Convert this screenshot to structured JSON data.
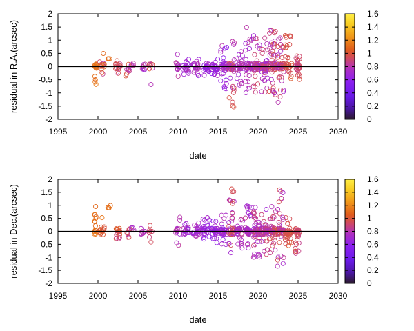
{
  "chart_data": [
    {
      "type": "scatter",
      "xlabel": "date",
      "ylabel": "residual in R.A.(arcsec)",
      "xlim": [
        1995,
        2030
      ],
      "ylim": [
        -2,
        2
      ],
      "xticks": [
        "1995",
        "2000",
        "2005",
        "2010",
        "2015",
        "2020",
        "2025",
        "2030"
      ],
      "yticks": [
        "-2",
        "-1.5",
        "-1",
        "-0.5",
        "0",
        "0.5",
        "1",
        "1.5",
        "2"
      ],
      "zero_line": true,
      "marker": "open-circle",
      "colorbar": {
        "range": [
          0,
          1.6
        ],
        "ticks": [
          "0",
          "0.2",
          "0.4",
          "0.6",
          "0.8",
          "1",
          "1.2",
          "1.4",
          "1.6"
        ],
        "palette": [
          "#2a1a2a",
          "#5a18c8",
          "#8a1cf0",
          "#b030c0",
          "#d04a60",
          "#e0601c",
          "#f0961a",
          "#f8cc22",
          "#ffee44"
        ]
      },
      "clusters": [
        {
          "x": 1999.7,
          "spread": 0.15,
          "n": 18,
          "y": [
            -1.1,
            0.3
          ],
          "c": [
            1.0,
            1.1
          ]
        },
        {
          "x": 2000.5,
          "spread": 0.3,
          "n": 14,
          "y": [
            -0.4,
            0.5
          ],
          "c": [
            0.6,
            1.1
          ]
        },
        {
          "x": 2001.4,
          "spread": 0.2,
          "n": 4,
          "y": [
            0.3,
            0.5
          ],
          "c": [
            1.0,
            1.1
          ]
        },
        {
          "x": 2002.5,
          "spread": 0.3,
          "n": 16,
          "y": [
            -0.3,
            0.25
          ],
          "c": [
            0.6,
            0.9
          ]
        },
        {
          "x": 2003.7,
          "spread": 0.3,
          "n": 8,
          "y": [
            -0.5,
            0.15
          ],
          "c": [
            0.5,
            1.0
          ]
        },
        {
          "x": 2004.3,
          "spread": 0.2,
          "n": 4,
          "y": [
            0.05,
            0.25
          ],
          "c": [
            0.5,
            0.7
          ]
        },
        {
          "x": 2005.6,
          "spread": 0.3,
          "n": 8,
          "y": [
            -0.35,
            0.2
          ],
          "c": [
            0.5,
            0.7
          ]
        },
        {
          "x": 2006.7,
          "spread": 0.3,
          "n": 8,
          "y": [
            -0.9,
            0.1
          ],
          "c": [
            0.6,
            0.95
          ]
        },
        {
          "x": 2010.0,
          "spread": 0.3,
          "n": 14,
          "y": [
            -0.4,
            0.65
          ],
          "c": [
            0.5,
            0.7
          ]
        },
        {
          "x": 2011.0,
          "spread": 0.4,
          "n": 18,
          "y": [
            -0.3,
            0.3
          ],
          "c": [
            0.45,
            0.65
          ]
        },
        {
          "x": 2012.2,
          "spread": 0.4,
          "n": 22,
          "y": [
            -0.35,
            0.35
          ],
          "c": [
            0.45,
            0.65
          ]
        },
        {
          "x": 2013.5,
          "spread": 0.4,
          "n": 26,
          "y": [
            -0.35,
            0.4
          ],
          "c": [
            0.4,
            0.6
          ]
        },
        {
          "x": 2014.6,
          "spread": 0.4,
          "n": 30,
          "y": [
            -0.6,
            0.45
          ],
          "c": [
            0.4,
            0.6
          ]
        },
        {
          "x": 2015.7,
          "spread": 0.4,
          "n": 38,
          "y": [
            -0.9,
            0.8
          ],
          "c": [
            0.4,
            0.65
          ]
        },
        {
          "x": 2016.7,
          "spread": 0.35,
          "n": 44,
          "y": [
            -1.55,
            1.05
          ],
          "c": [
            0.5,
            0.9
          ]
        },
        {
          "x": 2017.7,
          "spread": 0.4,
          "n": 32,
          "y": [
            -0.7,
            0.6
          ],
          "c": [
            0.5,
            0.7
          ]
        },
        {
          "x": 2018.8,
          "spread": 0.4,
          "n": 46,
          "y": [
            -1.0,
            1.5
          ],
          "c": [
            0.5,
            0.7
          ]
        },
        {
          "x": 2019.8,
          "spread": 0.4,
          "n": 52,
          "y": [
            -1.05,
            1.2
          ],
          "c": [
            0.5,
            0.8
          ]
        },
        {
          "x": 2020.8,
          "spread": 0.4,
          "n": 52,
          "y": [
            -1.0,
            1.1
          ],
          "c": [
            0.5,
            0.8
          ]
        },
        {
          "x": 2021.8,
          "spread": 0.4,
          "n": 56,
          "y": [
            -1.1,
            1.45
          ],
          "c": [
            0.55,
            0.9
          ]
        },
        {
          "x": 2022.8,
          "spread": 0.4,
          "n": 50,
          "y": [
            -1.6,
            1.15
          ],
          "c": [
            0.55,
            0.9
          ]
        },
        {
          "x": 2023.8,
          "spread": 0.4,
          "n": 34,
          "y": [
            -0.5,
            1.25
          ],
          "c": [
            0.8,
            0.95
          ]
        },
        {
          "x": 2024.9,
          "spread": 0.3,
          "n": 30,
          "y": [
            -0.6,
            0.45
          ],
          "c": [
            0.7,
            0.9
          ]
        }
      ]
    },
    {
      "type": "scatter",
      "xlabel": "date",
      "ylabel": "residual in Dec.(arcsec)",
      "xlim": [
        1995,
        2030
      ],
      "ylim": [
        -2,
        2
      ],
      "xticks": [
        "1995",
        "2000",
        "2005",
        "2010",
        "2015",
        "2020",
        "2025",
        "2030"
      ],
      "yticks": [
        "-2",
        "-1.5",
        "-1",
        "-0.5",
        "0",
        "0.5",
        "1",
        "1.5",
        "2"
      ],
      "zero_line": true,
      "marker": "open-circle",
      "colorbar": {
        "range": [
          0,
          1.6
        ],
        "ticks": [
          "0",
          "0.2",
          "0.4",
          "0.6",
          "0.8",
          "1",
          "1.2",
          "1.4",
          "1.6"
        ],
        "palette": [
          "#2a1a2a",
          "#5a18c8",
          "#8a1cf0",
          "#b030c0",
          "#d04a60",
          "#e0601c",
          "#f0961a",
          "#f8cc22",
          "#ffee44"
        ]
      },
      "clusters": [
        {
          "x": 1999.7,
          "spread": 0.15,
          "n": 18,
          "y": [
            -0.25,
            1.3
          ],
          "c": [
            1.0,
            1.1
          ]
        },
        {
          "x": 2000.5,
          "spread": 0.3,
          "n": 14,
          "y": [
            -0.2,
            0.6
          ],
          "c": [
            0.8,
            1.1
          ]
        },
        {
          "x": 2001.4,
          "spread": 0.2,
          "n": 4,
          "y": [
            0.9,
            1.05
          ],
          "c": [
            1.0,
            1.1
          ]
        },
        {
          "x": 2002.5,
          "spread": 0.3,
          "n": 16,
          "y": [
            -0.3,
            0.4
          ],
          "c": [
            0.7,
            1.0
          ]
        },
        {
          "x": 2003.7,
          "spread": 0.3,
          "n": 8,
          "y": [
            -0.3,
            0.1
          ],
          "c": [
            0.6,
            0.9
          ]
        },
        {
          "x": 2004.3,
          "spread": 0.2,
          "n": 4,
          "y": [
            0.05,
            0.15
          ],
          "c": [
            0.5,
            0.7
          ]
        },
        {
          "x": 2005.6,
          "spread": 0.3,
          "n": 8,
          "y": [
            -0.15,
            0.25
          ],
          "c": [
            0.5,
            0.7
          ]
        },
        {
          "x": 2006.7,
          "spread": 0.3,
          "n": 8,
          "y": [
            -0.45,
            0.25
          ],
          "c": [
            0.6,
            0.95
          ]
        },
        {
          "x": 2010.0,
          "spread": 0.3,
          "n": 14,
          "y": [
            -0.8,
            0.75
          ],
          "c": [
            0.5,
            0.7
          ]
        },
        {
          "x": 2011.0,
          "spread": 0.4,
          "n": 18,
          "y": [
            -0.3,
            0.3
          ],
          "c": [
            0.45,
            0.65
          ]
        },
        {
          "x": 2012.2,
          "spread": 0.4,
          "n": 22,
          "y": [
            -0.3,
            0.35
          ],
          "c": [
            0.45,
            0.65
          ]
        },
        {
          "x": 2013.5,
          "spread": 0.4,
          "n": 26,
          "y": [
            -0.35,
            0.55
          ],
          "c": [
            0.4,
            0.6
          ]
        },
        {
          "x": 2014.6,
          "spread": 0.4,
          "n": 30,
          "y": [
            -0.45,
            0.45
          ],
          "c": [
            0.4,
            0.6
          ]
        },
        {
          "x": 2015.7,
          "spread": 0.4,
          "n": 38,
          "y": [
            -0.6,
            1.05
          ],
          "c": [
            0.4,
            0.65
          ]
        },
        {
          "x": 2016.7,
          "spread": 0.35,
          "n": 44,
          "y": [
            -0.85,
            1.65
          ],
          "c": [
            0.5,
            0.9
          ]
        },
        {
          "x": 2017.7,
          "spread": 0.4,
          "n": 32,
          "y": [
            -0.65,
            0.6
          ],
          "c": [
            0.5,
            0.7
          ]
        },
        {
          "x": 2018.8,
          "spread": 0.4,
          "n": 46,
          "y": [
            -0.7,
            1.0
          ],
          "c": [
            0.5,
            0.7
          ]
        },
        {
          "x": 2019.8,
          "spread": 0.4,
          "n": 52,
          "y": [
            -1.0,
            1.0
          ],
          "c": [
            0.5,
            0.8
          ]
        },
        {
          "x": 2020.8,
          "spread": 0.4,
          "n": 52,
          "y": [
            -1.0,
            1.1
          ],
          "c": [
            0.5,
            0.8
          ]
        },
        {
          "x": 2021.8,
          "spread": 0.4,
          "n": 56,
          "y": [
            -0.95,
            0.95
          ],
          "c": [
            0.55,
            0.9
          ]
        },
        {
          "x": 2022.8,
          "spread": 0.4,
          "n": 50,
          "y": [
            -1.35,
            1.6
          ],
          "c": [
            0.55,
            0.9
          ]
        },
        {
          "x": 2023.8,
          "spread": 0.4,
          "n": 34,
          "y": [
            -0.6,
            0.6
          ],
          "c": [
            0.8,
            0.95
          ]
        },
        {
          "x": 2024.9,
          "spread": 0.3,
          "n": 30,
          "y": [
            -0.9,
            0.35
          ],
          "c": [
            0.7,
            0.9
          ]
        }
      ]
    }
  ]
}
